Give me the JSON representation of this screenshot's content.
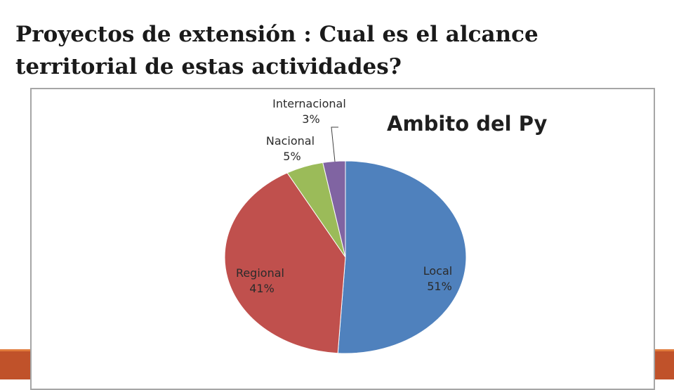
{
  "slide": {
    "title_line1": "Proyectos de extensión : Cual es el alcance",
    "title_line2": "territorial de estas actividades?"
  },
  "theme": {
    "band_color": "#c0522a",
    "band_line_color": "#e07a3c",
    "frame_border": "#a6a6a6"
  },
  "chart_data": {
    "type": "pie",
    "title": "Ambito del Py",
    "categories": [
      "Local",
      "Regional",
      "Nacional",
      "Internacional"
    ],
    "values": [
      51,
      41,
      5,
      3
    ],
    "labels": [
      "51%",
      "41%",
      "5%",
      "3%"
    ],
    "colors": [
      "#4f81bd",
      "#c0504d",
      "#9bbb59",
      "#8064a2"
    ],
    "legend": "none",
    "data_labels": "category and percentage"
  }
}
